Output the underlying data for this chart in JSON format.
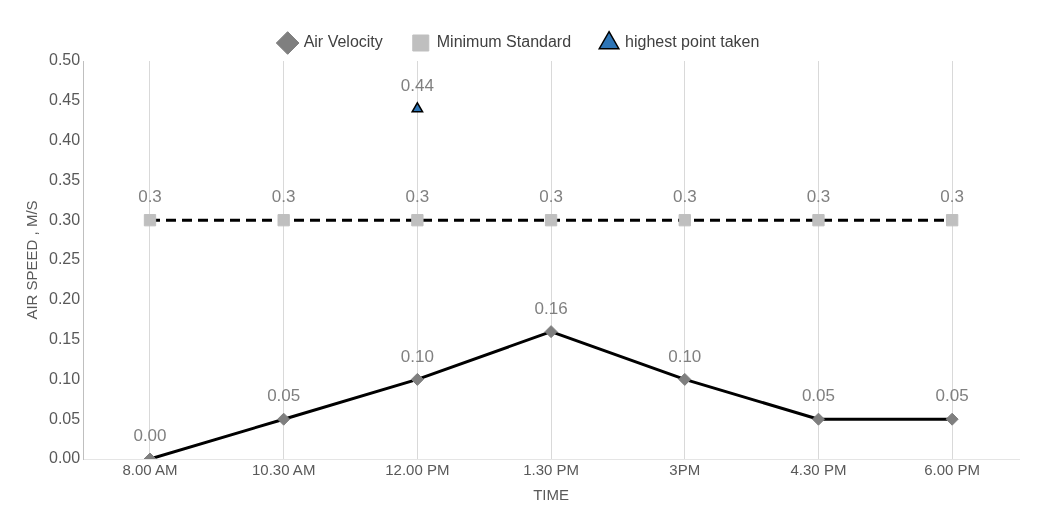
{
  "chart_data": {
    "type": "line",
    "categories": [
      "8.00 AM",
      "10.30 AM",
      "12.00 PM",
      "1.30 PM",
      "3PM",
      "4.30 PM",
      "6.00 PM"
    ],
    "series": [
      {
        "name": "Air Velocity",
        "color": "#000000",
        "marker": "diamond",
        "line_style": "solid",
        "values": [
          0,
          0.05,
          0.1,
          0.16,
          0.1,
          0.05,
          0.05
        ],
        "value_labels": [
          "0.00",
          "0.05",
          "0.10",
          "0.16",
          "0.10",
          "0.05",
          "0.05"
        ]
      },
      {
        "name": "Minimum Standard",
        "color": "#000000",
        "marker": "square",
        "line_style": "dashed",
        "values": [
          0.3,
          0.3,
          0.3,
          0.3,
          0.3,
          0.3,
          0.3
        ],
        "value_labels": [
          "0.3",
          "0.3",
          "0.3",
          "0.3",
          "0.3",
          "0.3",
          "0.3"
        ]
      },
      {
        "name": "highest point taken",
        "type": "scatter",
        "color": "#2e75b6",
        "marker": "triangle",
        "x": [
          "12.00 PM"
        ],
        "values": [
          0.44
        ],
        "value_labels": [
          "0.44"
        ]
      }
    ],
    "xlabel": "TIME",
    "ylabel": "AIR SPEED , M/S",
    "ylim": [
      0,
      0.5
    ],
    "yticks": [
      {
        "value": 0,
        "label": "0.00"
      },
      0.05,
      {
        "value": 0.1,
        "label": "0.10"
      },
      0.15,
      {
        "value": 0.2,
        "label": "0.20"
      },
      0.25,
      {
        "value": 0.3,
        "label": "0.30"
      },
      0.35,
      {
        "value": 0.4,
        "label": "0.40"
      },
      0.45,
      {
        "value": 0.5,
        "label": "0.50"
      }
    ],
    "grid": "x",
    "legend": "top"
  }
}
